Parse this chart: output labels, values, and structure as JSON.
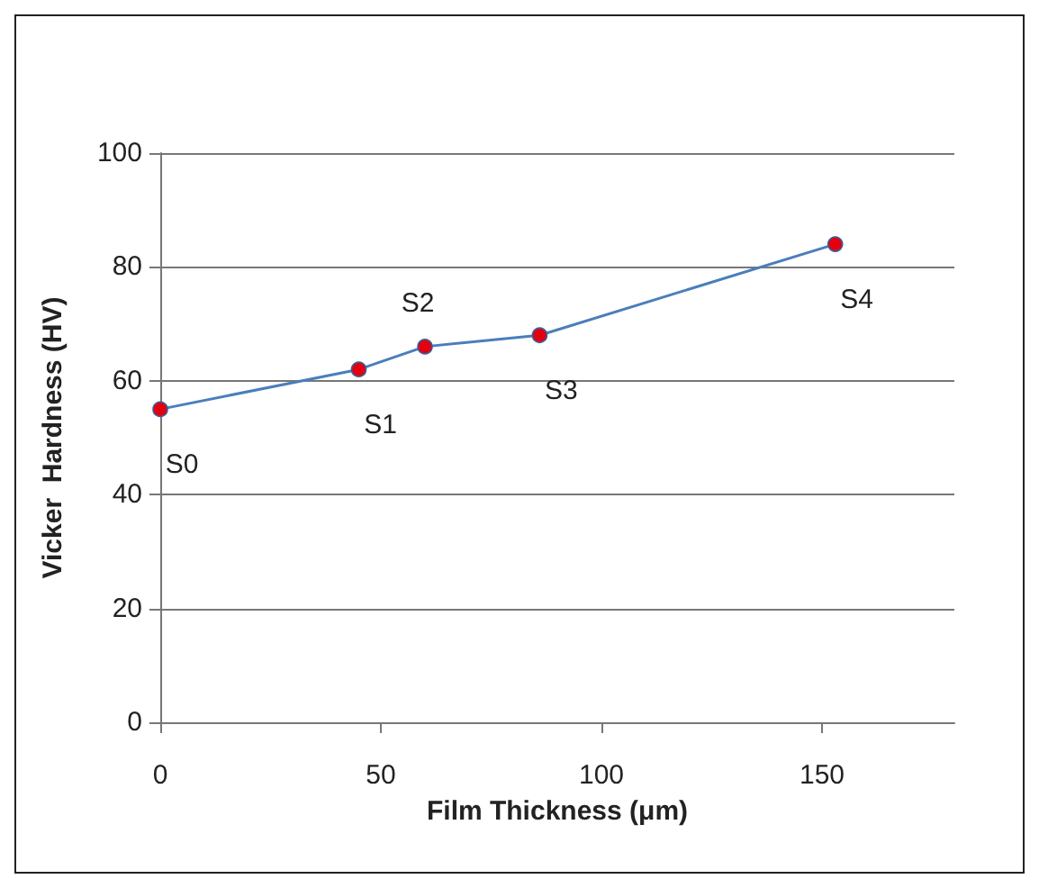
{
  "chart_data": {
    "type": "line",
    "xlabel": "Film Thickness (μm)",
    "ylabel": "Vicker  Hardness (HV)",
    "x": [
      0,
      45,
      60,
      86,
      153
    ],
    "series": [
      {
        "color": "#4a7ebb",
        "colors": [
          "#e3000f",
          "#e3000f",
          "#e3000f",
          "#e3000f",
          "#e3000f"
        ],
        "values": [
          55,
          62,
          66,
          68,
          84
        ]
      }
    ],
    "xlim": [
      0,
      180
    ],
    "xticks": [
      0,
      50,
      100,
      150
    ],
    "ylim": [
      0,
      100
    ],
    "yticks": [
      0,
      20,
      40,
      60,
      80,
      100
    ],
    "grid": "y",
    "marker": "circle",
    "line_style": "solid",
    "annotations": [
      {
        "text": "S0",
        "x": 0,
        "y": 55
      },
      {
        "text": "S1",
        "x": 45,
        "y": 62
      },
      {
        "text": "S2",
        "x": 60,
        "y": 66
      },
      {
        "text": "S3",
        "x": 86,
        "y": 68
      },
      {
        "text": "S4",
        "x": 153,
        "y": 84
      }
    ]
  }
}
